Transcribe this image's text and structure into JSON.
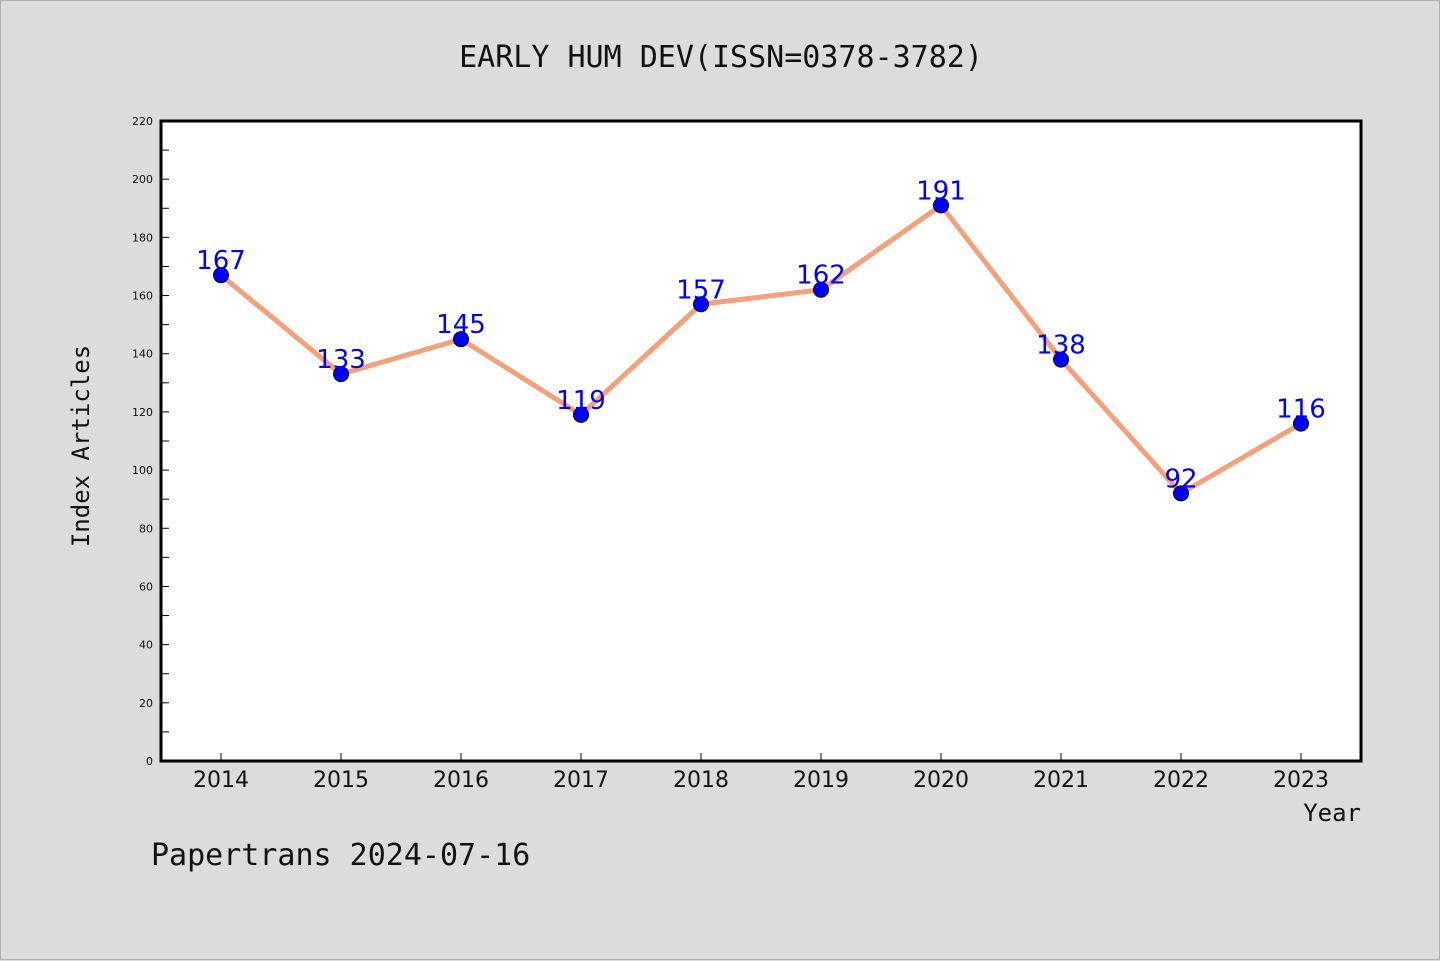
{
  "chart_data": {
    "type": "line",
    "title": "EARLY HUM DEV(ISSN=0378-3782)",
    "xlabel": "Year",
    "ylabel": "Index Articles",
    "categories": [
      "2014",
      "2015",
      "2016",
      "2017",
      "2018",
      "2019",
      "2020",
      "2021",
      "2022",
      "2023"
    ],
    "series": [
      {
        "values": [
          167,
          133,
          145,
          119,
          157,
          162,
          191,
          138,
          92,
          116
        ]
      }
    ],
    "ylim": [
      0,
      220
    ],
    "yticks": [
      0,
      20,
      40,
      60,
      80,
      100,
      120,
      140,
      160,
      180,
      200,
      220
    ],
    "grid": false,
    "colors": {
      "line": "#f4a07a",
      "marker": "#0000ff",
      "label": "#0000ff",
      "background": "#dcdcdc",
      "plot_bg": "#ffffff"
    }
  },
  "footer": "Papertrans 2024-07-16"
}
